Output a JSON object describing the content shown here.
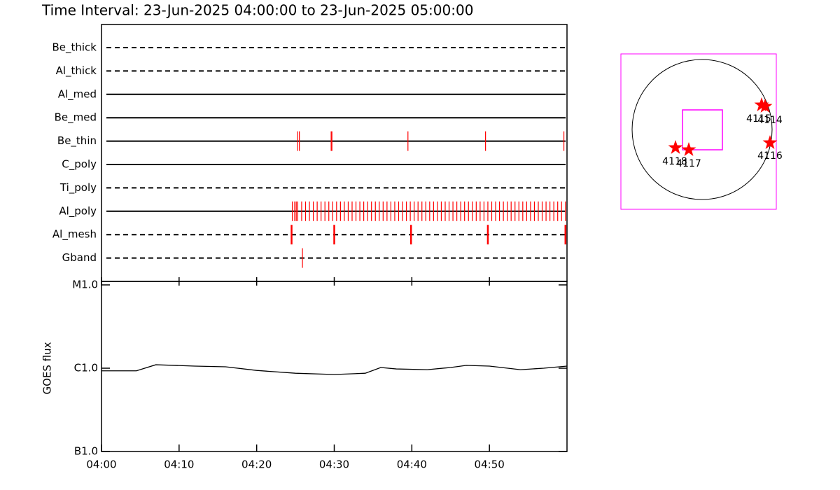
{
  "title": "Time Interval: 23-Jun-2025 04:00:00 to 23-Jun-2025 05:00:00",
  "chart_data": [
    {
      "type": "timeline",
      "xlim": [
        0,
        60
      ],
      "color": "#ff0000",
      "rows": [
        {
          "name": "Be_thick",
          "style": "dashed",
          "events": []
        },
        {
          "name": "Al_thick",
          "style": "dashed",
          "events": []
        },
        {
          "name": "Al_med",
          "style": "solid",
          "events": []
        },
        {
          "name": "Be_med",
          "style": "solid",
          "events": []
        },
        {
          "name": "Be_thin",
          "style": "solid",
          "events": [
            25.3,
            25.5,
            29.6,
            29.7,
            39.5,
            49.5,
            59.6
          ]
        },
        {
          "name": "C_poly",
          "style": "solid",
          "events": []
        },
        {
          "name": "Ti_poly",
          "style": "dashed",
          "events": []
        },
        {
          "name": "Al_poly",
          "style": "solid",
          "events": [
            24.6,
            24.9,
            25.1,
            25.3,
            25.8,
            26.3,
            26.8,
            27.3,
            27.8,
            28.3,
            28.8,
            29.3,
            29.8,
            30.3,
            30.8,
            31.3,
            31.8,
            32.3,
            32.8,
            33.3,
            33.8,
            34.3,
            34.8,
            35.3,
            35.8,
            36.3,
            36.8,
            37.3,
            37.8,
            38.3,
            38.8,
            39.3,
            39.8,
            40.3,
            40.8,
            41.3,
            41.8,
            42.3,
            42.8,
            43.3,
            43.8,
            44.3,
            44.8,
            45.3,
            45.8,
            46.3,
            46.8,
            47.3,
            47.8,
            48.3,
            48.8,
            49.3,
            49.8,
            50.3,
            50.8,
            51.3,
            51.8,
            52.3,
            52.8,
            53.3,
            53.8,
            54.3,
            54.8,
            55.3,
            55.8,
            56.3,
            56.8,
            57.3,
            57.8,
            58.3,
            58.8,
            59.3,
            59.8
          ]
        },
        {
          "name": "Al_mesh",
          "style": "dashed",
          "events": [
            24.5,
            30.0,
            39.9,
            49.8,
            59.8
          ]
        },
        {
          "name": "Gband",
          "style": "dashed",
          "events": [
            25.9
          ]
        }
      ]
    },
    {
      "type": "line",
      "ylabel": "GOES flux",
      "log_scale": true,
      "color": "#000000",
      "xlim": [
        0,
        60
      ],
      "xticks": [
        {
          "value": 0,
          "label": "04:00"
        },
        {
          "value": 10,
          "label": "04:10"
        },
        {
          "value": 20,
          "label": "04:20"
        },
        {
          "value": 30,
          "label": "04:30"
        },
        {
          "value": 40,
          "label": "04:40"
        },
        {
          "value": 50,
          "label": "04:50"
        }
      ],
      "ylim": [
        1e-07,
        1e-05
      ],
      "yticks": [
        {
          "value": 1e-07,
          "label": "B1.0"
        },
        {
          "value": 1e-06,
          "label": "C1.0"
        },
        {
          "value": 1e-05,
          "label": "M1.0"
        }
      ],
      "x": [
        0,
        4.5,
        7,
        12,
        16,
        20,
        25,
        30,
        34,
        36,
        38,
        42,
        45,
        47,
        50,
        54,
        57,
        60
      ],
      "values": [
        9.3e-07,
        9.3e-07,
        1.1e-06,
        1.06e-06,
        1.04e-06,
        9.4e-07,
        8.7e-07,
        8.4e-07,
        8.7e-07,
        1.02e-06,
        9.8e-07,
        9.6e-07,
        1.02e-06,
        1.08e-06,
        1.06e-06,
        9.6e-07,
        1e-06,
        1.06e-06
      ]
    },
    {
      "type": "map",
      "color": "#ff0000",
      "box_color": "#ff00ff",
      "regions": [
        {
          "label": "4115"
        },
        {
          "label": "4114"
        },
        {
          "label": "4118"
        },
        {
          "label": "4117"
        },
        {
          "label": "4116"
        }
      ]
    }
  ]
}
